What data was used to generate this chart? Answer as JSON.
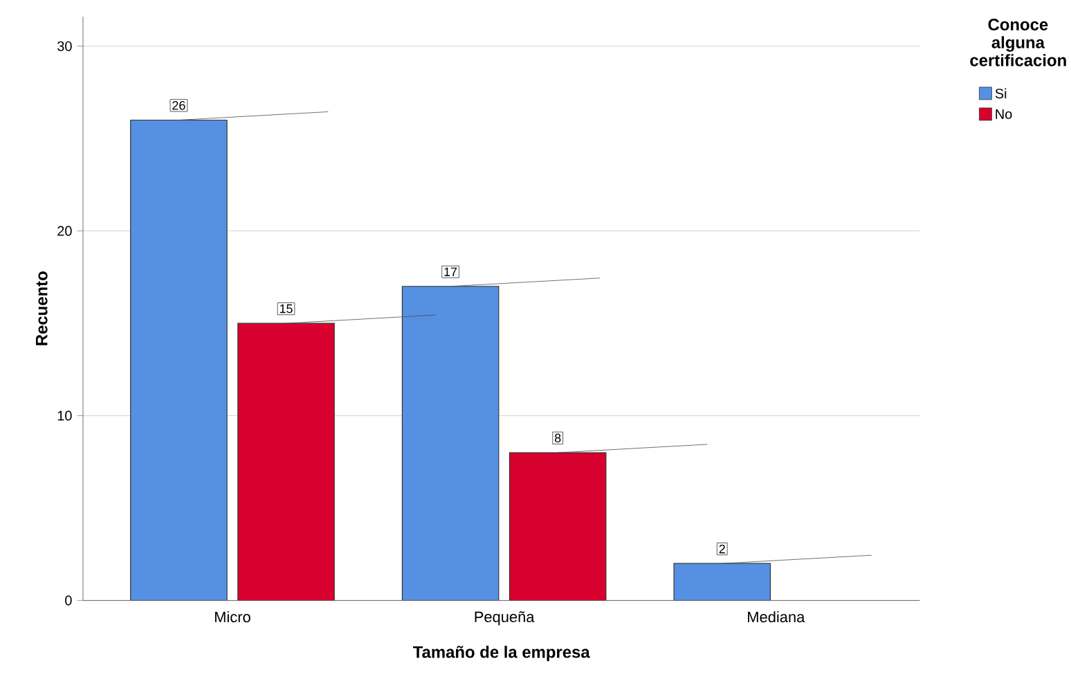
{
  "chart_data": {
    "type": "bar",
    "xlabel": "Tamaño de la empresa",
    "ylabel": "Recuento",
    "legend_title": "Conoce alguna certificacion",
    "categories": [
      "Micro",
      "Pequeña",
      "Mediana"
    ],
    "series": [
      {
        "name": "Si",
        "color": "#5590e2",
        "values": [
          26,
          17,
          2
        ]
      },
      {
        "name": "No",
        "color": "#d8002e",
        "values": [
          15,
          8,
          null
        ]
      }
    ],
    "ylim": [
      0,
      31.6
    ],
    "yticks": [
      0,
      10,
      20,
      30
    ],
    "grid": "y",
    "legend": "top right",
    "data_labels": true
  }
}
